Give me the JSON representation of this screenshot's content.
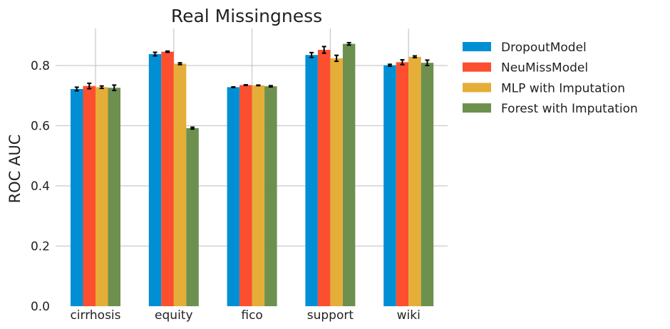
{
  "chart_data": {
    "type": "bar",
    "title": "Real Missingness",
    "xlabel": "",
    "ylabel": "ROC AUC",
    "ylim": [
      0,
      0.92
    ],
    "yticks": [
      "0.0",
      "0.2",
      "0.4",
      "0.6",
      "0.8"
    ],
    "grid": true,
    "legend_position": "outside-right",
    "categories": [
      "cirrhosis",
      "equity",
      "fico",
      "support",
      "wiki"
    ],
    "series": [
      {
        "name": "DropoutModel",
        "color": "#008fd5",
        "values": [
          0.722,
          0.838,
          0.728,
          0.835,
          0.801
        ],
        "errors": [
          0.006,
          0.006,
          0.001,
          0.008,
          0.003
        ]
      },
      {
        "name": "NeuMissModel",
        "color": "#fc4f30",
        "values": [
          0.732,
          0.846,
          0.735,
          0.852,
          0.811
        ],
        "errors": [
          0.009,
          0.002,
          0.001,
          0.011,
          0.008
        ]
      },
      {
        "name": "MLP with Imputation",
        "color": "#e5ae38",
        "values": [
          0.728,
          0.806,
          0.734,
          0.824,
          0.829
        ],
        "errors": [
          0.004,
          0.003,
          0.001,
          0.01,
          0.003
        ]
      },
      {
        "name": "Forest with Imputation",
        "color": "#6d904f",
        "values": [
          0.726,
          0.592,
          0.731,
          0.872,
          0.809
        ],
        "errors": [
          0.009,
          0.003,
          0.002,
          0.004,
          0.009
        ]
      }
    ]
  }
}
